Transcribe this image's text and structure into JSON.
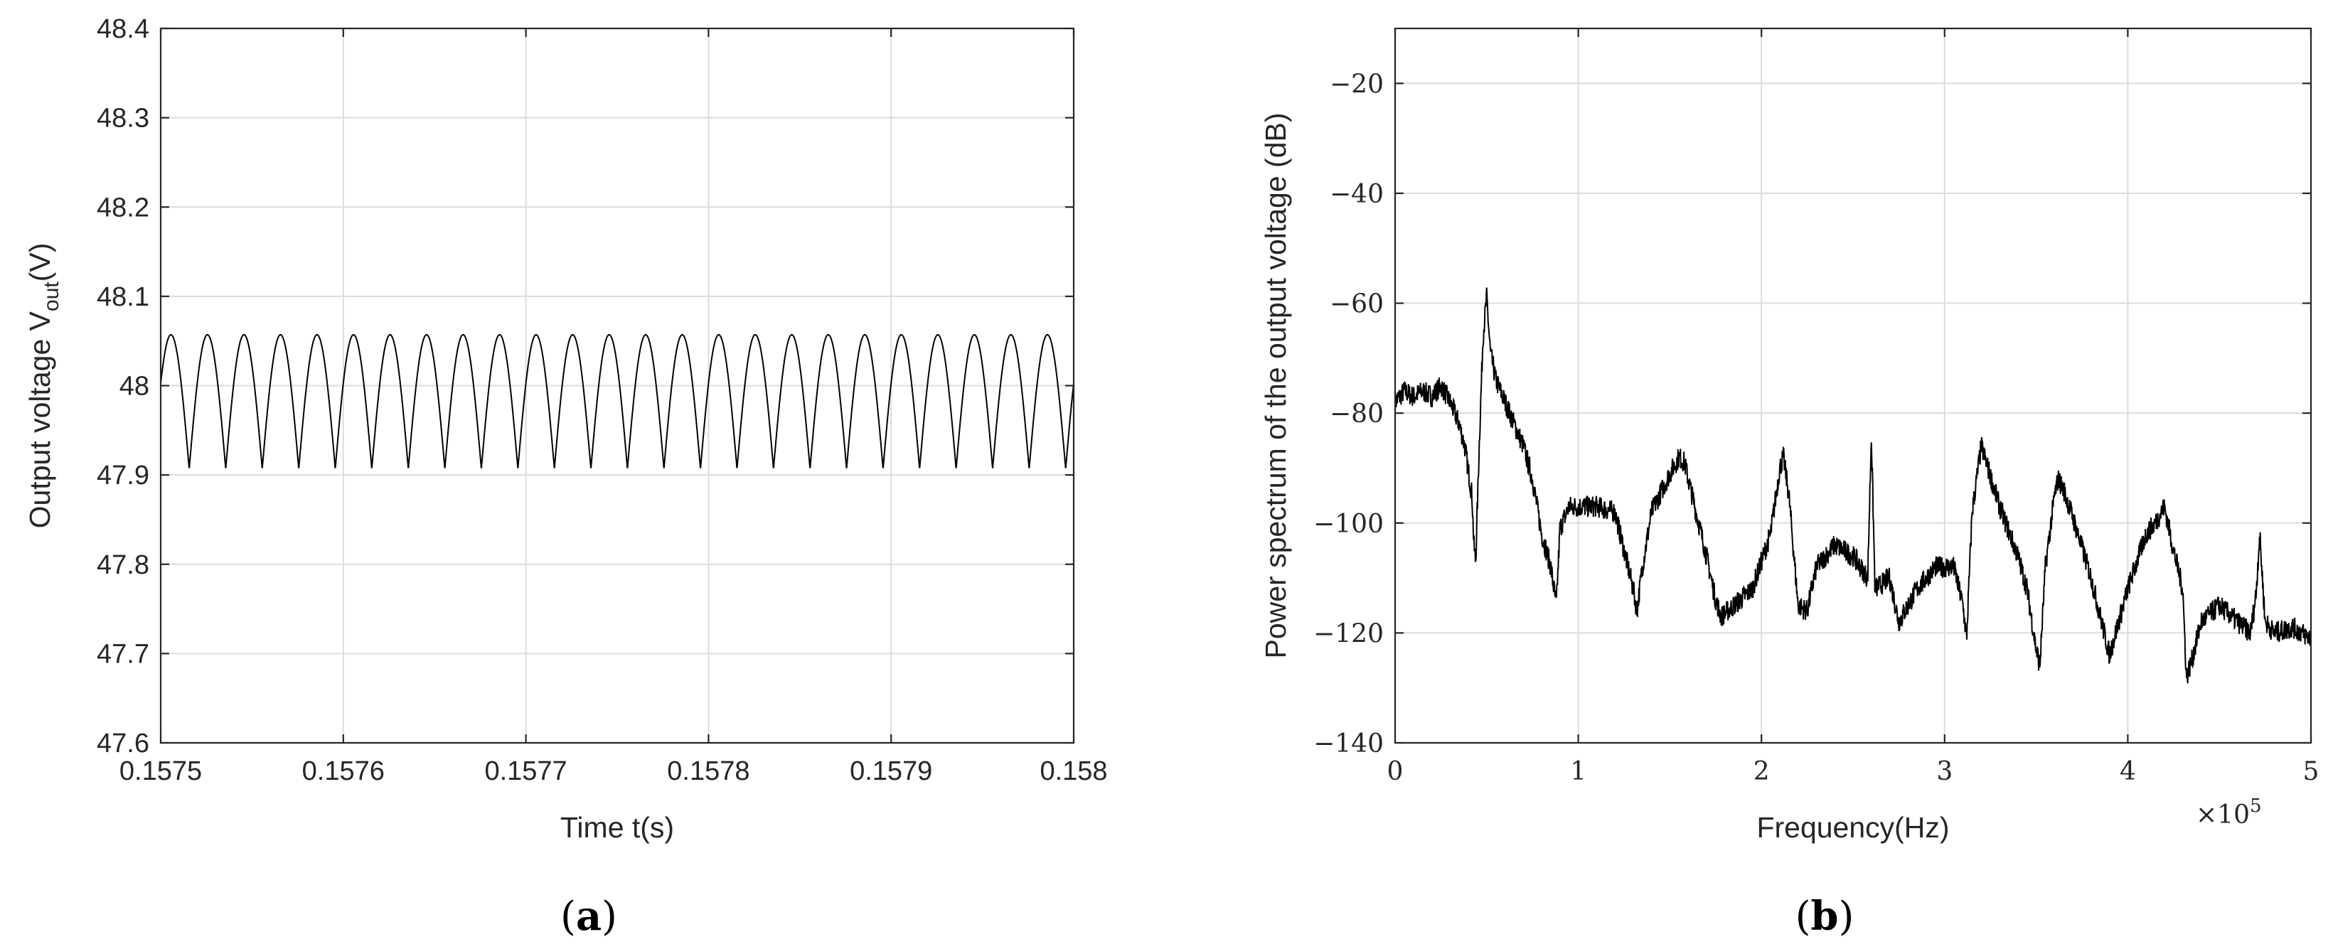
{
  "chart_data": [
    {
      "type": "line",
      "xlabel": "Time t(s)",
      "ylabel": "Output voltage V",
      "ylabel_sub": "out",
      "ylabel_unit": "(V)",
      "xlim": [
        0.1575,
        0.158
      ],
      "ylim": [
        47.6,
        48.4
      ],
      "xticks": [
        0.1575,
        0.1576,
        0.1577,
        0.1578,
        0.1579,
        0.158
      ],
      "xtick_labels": [
        "0.1575",
        "0.1576",
        "0.1577",
        "0.1578",
        "0.1579",
        "0.158"
      ],
      "yticks": [
        47.6,
        47.7,
        47.8,
        47.9,
        48,
        48.1,
        48.2,
        48.3,
        48.4
      ],
      "ytick_labels": [
        "47.6",
        "47.7",
        "47.8",
        "47.9",
        "48",
        "48.1",
        "48.2",
        "48.3",
        "48.4"
      ],
      "grid": true,
      "series": [
        {
          "waveform": "rectified-sine ripple",
          "peak": 48.057,
          "trough": 47.907,
          "cycles_in_window": 25,
          "period_s": 2e-05,
          "start_phase_fraction": 0.22
        }
      ],
      "caption": "(a)"
    },
    {
      "type": "line",
      "xlabel": "Frequency(Hz)",
      "ylabel": "Power spectrum of the output voltage (dB)",
      "xlim": [
        0,
        500000
      ],
      "ylim": [
        -140,
        -10
      ],
      "xticks": [
        0,
        100000,
        200000,
        300000,
        400000,
        500000
      ],
      "xtick_labels": [
        "0",
        "1",
        "2",
        "3",
        "4",
        "5"
      ],
      "x_multiplier": "×10",
      "x_multiplier_exp": "5",
      "yticks": [
        -140,
        -120,
        -100,
        -80,
        -60,
        -40,
        -20
      ],
      "ytick_labels": [
        "−140",
        "−120",
        "−100",
        "−80",
        "−60",
        "−40",
        "−20"
      ],
      "grid": true,
      "series": [
        {
          "x": [
            0,
            5000,
            10000,
            15000,
            20000,
            25000,
            30000,
            35000,
            38000,
            42000,
            43000,
            44000,
            46000,
            48000,
            50000,
            52000,
            55000,
            60000,
            65000,
            70000,
            75000,
            80000,
            85000,
            88000,
            90000,
            95000,
            100000,
            110000,
            120000,
            125000,
            130000,
            132000,
            135000,
            140000,
            150000,
            155000,
            158000,
            160000,
            170000,
            175000,
            178000,
            185000,
            195000,
            205000,
            210000,
            212000,
            215000,
            220000,
            225000,
            230000,
            240000,
            250000,
            258000,
            260000,
            262000,
            270000,
            275000,
            285000,
            295000,
            305000,
            310000,
            312000,
            315000,
            320000,
            330000,
            340000,
            345000,
            350000,
            352000,
            355000,
            360000,
            362000,
            365000,
            370000,
            380000,
            385000,
            390000,
            400000,
            410000,
            415000,
            420000,
            425000,
            430000,
            432000,
            435000,
            440000,
            450000,
            460000,
            467000,
            470000,
            472000,
            475000,
            480000,
            490000,
            500000
          ],
          "y": [
            -78,
            -76,
            -77,
            -76,
            -77,
            -75,
            -78,
            -82,
            -86,
            -95,
            -104,
            -107,
            -85,
            -66,
            -59,
            -69,
            -74,
            -78,
            -82,
            -86,
            -92,
            -102,
            -108,
            -115,
            -101,
            -97,
            -97,
            -97,
            -98,
            -105,
            -112,
            -116,
            -108,
            -98,
            -91,
            -88,
            -89,
            -92,
            -106,
            -114,
            -117,
            -115,
            -112,
            -102,
            -90,
            -88,
            -95,
            -115,
            -116,
            -108,
            -104,
            -106,
            -110,
            -84,
            -112,
            -110,
            -118,
            -112,
            -108,
            -108,
            -115,
            -121,
            -98,
            -86,
            -97,
            -106,
            -112,
            -123,
            -126,
            -108,
            -95,
            -92,
            -94,
            -99,
            -110,
            -117,
            -124,
            -112,
            -102,
            -100,
            -97,
            -105,
            -112,
            -128,
            -125,
            -118,
            -115,
            -118,
            -120,
            -113,
            -102,
            -118,
            -120,
            -119,
            -121
          ],
          "envelope": "noisy trace, approx ±2 dB fluctuation around listed values"
        }
      ],
      "caption": "(b)"
    }
  ],
  "captions": {
    "a": "(a)",
    "a_letter": "a",
    "b": "(b)",
    "b_letter": "b"
  }
}
